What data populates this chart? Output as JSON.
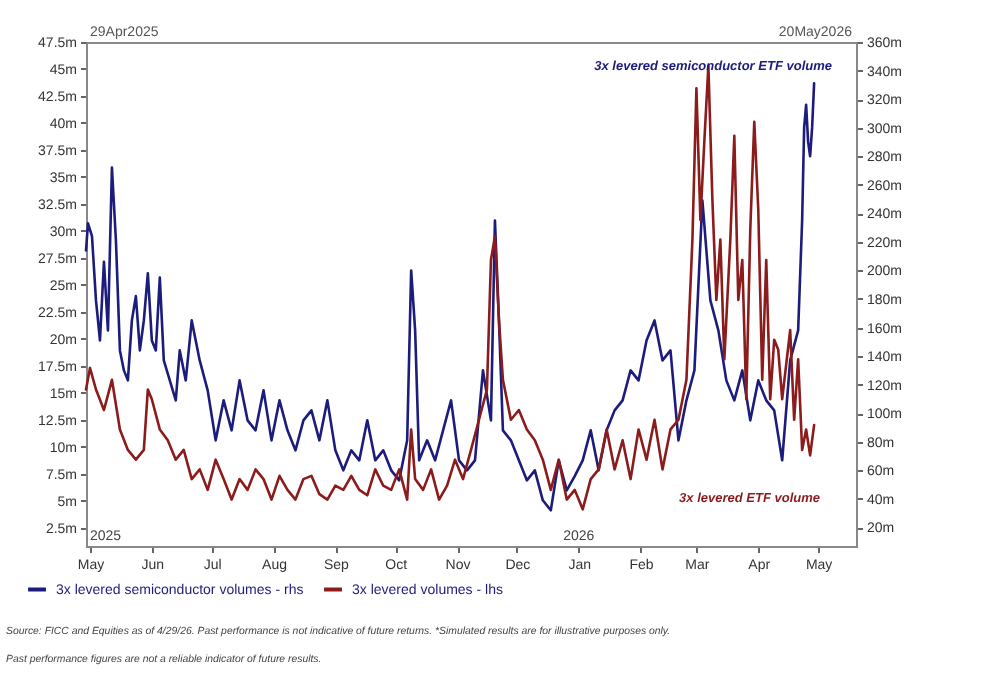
{
  "chart_data": {
    "type": "line",
    "ylim": [
      0.8,
      47.5
    ],
    "y2lim": [
      7,
      360
    ],
    "xlim": [
      "2025-04-29",
      "2026-05-20"
    ],
    "yticks": [
      {
        "value": 2.5,
        "label": "2.5m"
      },
      {
        "value": 5,
        "label": "5m"
      },
      {
        "value": 7.5,
        "label": "7.5m"
      },
      {
        "value": 10,
        "label": "10m"
      },
      {
        "value": 12.5,
        "label": "12.5m"
      },
      {
        "value": 15,
        "label": "15m"
      },
      {
        "value": 17.5,
        "label": "17.5m"
      },
      {
        "value": 20,
        "label": "20m"
      },
      {
        "value": 22.5,
        "label": "22.5m"
      },
      {
        "value": 25,
        "label": "25m"
      },
      {
        "value": 27.5,
        "label": "27.5m"
      },
      {
        "value": 30,
        "label": "30m"
      },
      {
        "value": 32.5,
        "label": "32.5m"
      },
      {
        "value": 35,
        "label": "35m"
      },
      {
        "value": 37.5,
        "label": "37.5m"
      },
      {
        "value": 40,
        "label": "40m"
      },
      {
        "value": 42.5,
        "label": "42.5m"
      },
      {
        "value": 45,
        "label": "45m"
      },
      {
        "value": 47.5,
        "label": "47.5m"
      }
    ],
    "y2ticks": [
      {
        "value": 20,
        "label": "20m"
      },
      {
        "value": 40,
        "label": "40m"
      },
      {
        "value": 60,
        "label": "60m"
      },
      {
        "value": 80,
        "label": "80m"
      },
      {
        "value": 100,
        "label": "100m"
      },
      {
        "value": 120,
        "label": "120m"
      },
      {
        "value": 140,
        "label": "140m"
      },
      {
        "value": 160,
        "label": "160m"
      },
      {
        "value": 180,
        "label": "180m"
      },
      {
        "value": 200,
        "label": "200m"
      },
      {
        "value": 220,
        "label": "220m"
      },
      {
        "value": 240,
        "label": "240m"
      },
      {
        "value": 260,
        "label": "260m"
      },
      {
        "value": 280,
        "label": "280m"
      },
      {
        "value": 300,
        "label": "300m"
      },
      {
        "value": 320,
        "label": "320m"
      },
      {
        "value": 340,
        "label": "340m"
      },
      {
        "value": 360,
        "label": "360m"
      }
    ],
    "xticks": [
      {
        "value": "2025-05-01",
        "label": "May"
      },
      {
        "value": "2025-06-01",
        "label": "Jun"
      },
      {
        "value": "2025-07-01",
        "label": "Jul"
      },
      {
        "value": "2025-08-01",
        "label": "Aug"
      },
      {
        "value": "2025-09-01",
        "label": "Sep"
      },
      {
        "value": "2025-10-01",
        "label": "Oct"
      },
      {
        "value": "2025-11-01",
        "label": "Nov"
      },
      {
        "value": "2025-12-01",
        "label": "Dec"
      },
      {
        "value": "2026-01-01",
        "label": "Jan"
      },
      {
        "value": "2026-02-01",
        "label": "Feb"
      },
      {
        "value": "2026-03-01",
        "label": "Mar"
      },
      {
        "value": "2026-04-01",
        "label": "Apr"
      },
      {
        "value": "2026-05-01",
        "label": "May"
      }
    ],
    "grid": false,
    "legend": "bottom",
    "line_style": "solid",
    "annotations": [
      "29Apr2025",
      "20May2026",
      "2025",
      "2026",
      "3x levered semiconductor ETF volume",
      "3x levered ETF volume",
      "Source: FICC and Equities as of 4/29/26. Past performance is not indicative of future returns. *Simulated results are for illustrative purposes only.",
      "Past performance figures are not a reliable indicator of future results."
    ],
    "series": [
      {
        "name": "3x levered semiconductor volumes - rhs",
        "color": "#1c1c7c",
        "axis": "y2",
        "x": [
          "2025-04-29",
          "2025-04-30",
          "2025-05-02",
          "2025-05-04",
          "2025-05-06",
          "2025-05-08",
          "2025-05-10",
          "2025-05-12",
          "2025-05-14",
          "2025-05-16",
          "2025-05-18",
          "2025-05-20",
          "2025-05-22",
          "2025-05-24",
          "2025-05-26",
          "2025-05-28",
          "2025-05-30",
          "2025-06-01",
          "2025-06-03",
          "2025-06-05",
          "2025-06-07",
          "2025-06-10",
          "2025-06-13",
          "2025-06-15",
          "2025-06-18",
          "2025-06-21",
          "2025-06-25",
          "2025-06-29",
          "2025-07-03",
          "2025-07-07",
          "2025-07-11",
          "2025-07-15",
          "2025-07-19",
          "2025-07-23",
          "2025-07-27",
          "2025-07-31",
          "2025-08-04",
          "2025-08-08",
          "2025-08-12",
          "2025-08-16",
          "2025-08-20",
          "2025-08-24",
          "2025-08-28",
          "2025-09-01",
          "2025-09-05",
          "2025-09-09",
          "2025-09-13",
          "2025-09-17",
          "2025-09-21",
          "2025-09-25",
          "2025-09-29",
          "2025-10-03",
          "2025-10-07",
          "2025-10-09",
          "2025-10-11",
          "2025-10-13",
          "2025-10-17",
          "2025-10-21",
          "2025-10-25",
          "2025-10-29",
          "2025-11-02",
          "2025-11-06",
          "2025-11-10",
          "2025-11-14",
          "2025-11-18",
          "2025-11-20",
          "2025-11-22",
          "2025-11-24",
          "2025-11-28",
          "2025-12-02",
          "2025-12-06",
          "2025-12-10",
          "2025-12-14",
          "2025-12-18",
          "2025-12-22",
          "2025-12-26",
          "2025-12-30",
          "2026-01-03",
          "2026-01-07",
          "2026-01-11",
          "2026-01-15",
          "2026-01-19",
          "2026-01-23",
          "2026-01-27",
          "2026-01-31",
          "2026-02-04",
          "2026-02-08",
          "2026-02-12",
          "2026-02-16",
          "2026-02-20",
          "2026-02-24",
          "2026-02-28",
          "2026-03-04",
          "2026-03-08",
          "2026-03-12",
          "2026-03-16",
          "2026-03-20",
          "2026-03-24",
          "2026-03-28",
          "2026-04-01",
          "2026-04-05",
          "2026-04-09",
          "2026-04-13",
          "2026-04-17",
          "2026-04-21",
          "2026-04-23",
          "2026-04-24",
          "2026-04-25",
          "2026-04-26",
          "2026-04-27",
          "2026-04-28",
          "2026-04-29"
        ],
        "values": [
          214,
          233,
          224,
          179,
          151,
          206,
          158,
          272,
          221,
          144,
          130,
          123,
          165,
          182,
          144,
          165,
          198,
          151,
          144,
          195,
          137,
          123,
          109,
          144,
          123,
          165,
          137,
          116,
          81,
          109,
          88,
          123,
          95,
          88,
          116,
          81,
          109,
          88,
          74,
          95,
          102,
          81,
          109,
          74,
          60,
          74,
          67,
          95,
          67,
          74,
          60,
          53,
          81,
          200,
          158,
          67,
          81,
          67,
          88,
          109,
          67,
          60,
          67,
          130,
          95,
          235,
          165,
          88,
          81,
          67,
          53,
          60,
          39,
          32,
          67,
          46,
          56,
          67,
          88,
          60,
          88,
          102,
          109,
          130,
          123,
          151,
          165,
          137,
          144,
          81,
          109,
          130,
          249,
          179,
          158,
          123,
          109,
          130,
          95,
          123,
          109,
          102,
          67,
          137,
          158,
          235,
          300,
          316,
          290,
          280,
          300,
          331
        ]
      },
      {
        "name": "3x levered volumes - lhs",
        "color": "#8c1c1c",
        "x": [
          "2025-04-29",
          "2025-05-01",
          "2025-05-04",
          "2025-05-08",
          "2025-05-12",
          "2025-05-16",
          "2025-05-20",
          "2025-05-24",
          "2025-05-28",
          "2025-05-30",
          "2025-06-01",
          "2025-06-05",
          "2025-06-09",
          "2025-06-13",
          "2025-06-17",
          "2025-06-21",
          "2025-06-25",
          "2025-06-29",
          "2025-07-03",
          "2025-07-07",
          "2025-07-11",
          "2025-07-15",
          "2025-07-19",
          "2025-07-23",
          "2025-07-27",
          "2025-07-31",
          "2025-08-04",
          "2025-08-08",
          "2025-08-12",
          "2025-08-16",
          "2025-08-20",
          "2025-08-24",
          "2025-08-28",
          "2025-09-01",
          "2025-09-05",
          "2025-09-09",
          "2025-09-13",
          "2025-09-17",
          "2025-09-21",
          "2025-09-25",
          "2025-09-29",
          "2025-10-03",
          "2025-10-07",
          "2025-10-09",
          "2025-10-11",
          "2025-10-15",
          "2025-10-19",
          "2025-10-23",
          "2025-10-27",
          "2025-10-31",
          "2025-11-04",
          "2025-11-08",
          "2025-11-12",
          "2025-11-16",
          "2025-11-18",
          "2025-11-20",
          "2025-11-22",
          "2025-11-24",
          "2025-11-28",
          "2025-12-02",
          "2025-12-06",
          "2025-12-10",
          "2025-12-14",
          "2025-12-18",
          "2025-12-22",
          "2025-12-26",
          "2025-12-30",
          "2026-01-03",
          "2026-01-07",
          "2026-01-11",
          "2026-01-15",
          "2026-01-19",
          "2026-01-23",
          "2026-01-27",
          "2026-01-31",
          "2026-02-04",
          "2026-02-08",
          "2026-02-12",
          "2026-02-16",
          "2026-02-20",
          "2026-02-24",
          "2026-02-27",
          "2026-03-01",
          "2026-03-03",
          "2026-03-05",
          "2026-03-07",
          "2026-03-09",
          "2026-03-11",
          "2026-03-13",
          "2026-03-15",
          "2026-03-18",
          "2026-03-20",
          "2026-03-22",
          "2026-03-24",
          "2026-03-26",
          "2026-03-28",
          "2026-03-30",
          "2026-04-01",
          "2026-04-03",
          "2026-04-05",
          "2026-04-07",
          "2026-04-09",
          "2026-04-11",
          "2026-04-13",
          "2026-04-17",
          "2026-04-19",
          "2026-04-21",
          "2026-04-23",
          "2026-04-25",
          "2026-04-27",
          "2026-04-29"
        ],
        "values": [
          15.3,
          17.3,
          15.3,
          13.4,
          16.2,
          11.6,
          9.7,
          8.8,
          9.7,
          15.3,
          14.4,
          11.6,
          10.6,
          8.8,
          9.7,
          7.0,
          7.9,
          6.0,
          8.8,
          7.0,
          5.1,
          7.0,
          6.0,
          7.9,
          7.0,
          5.1,
          7.3,
          6.0,
          5.1,
          7.0,
          7.3,
          5.6,
          5.1,
          6.4,
          6.0,
          7.3,
          6.0,
          5.5,
          7.9,
          6.4,
          6.0,
          7.9,
          5.1,
          11.6,
          7.0,
          6.0,
          7.9,
          5.1,
          6.4,
          8.8,
          7.0,
          9.7,
          12.5,
          15.3,
          27.3,
          29.5,
          21.8,
          16.2,
          12.5,
          13.4,
          11.6,
          10.6,
          8.8,
          6.0,
          8.8,
          5.1,
          6.0,
          4.2,
          7.0,
          7.9,
          11.6,
          7.9,
          10.6,
          7.0,
          11.6,
          8.8,
          12.5,
          7.9,
          11.6,
          12.5,
          16.2,
          29.2,
          43.2,
          31.0,
          38.4,
          45.3,
          32.9,
          23.6,
          29.2,
          18.1,
          29.2,
          38.8,
          23.6,
          27.3,
          14.4,
          30.1,
          40.1,
          32.0,
          16.2,
          27.3,
          14.4,
          19.9,
          19.0,
          14.4,
          20.8,
          12.5,
          18.1,
          9.7,
          11.6,
          9.2,
          12.0
        ]
      }
    ]
  }
}
